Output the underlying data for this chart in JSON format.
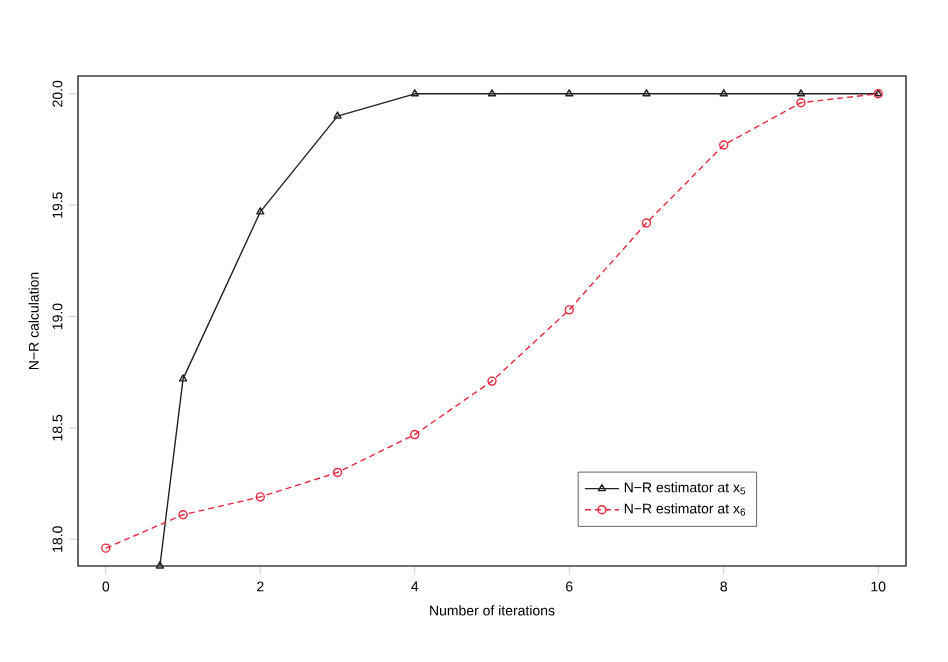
{
  "chart_data": {
    "type": "line",
    "xlabel": "Number of iterations",
    "ylabel": "N−R calculation",
    "xlim": [
      -0.36,
      10.36
    ],
    "ylim": [
      17.88,
      20.08
    ],
    "xticks": [
      0,
      2,
      4,
      6,
      8,
      10
    ],
    "yticks": [
      {
        "value": 18,
        "label": "18.0"
      },
      {
        "value": 18.5,
        "label": "18.5"
      },
      {
        "value": 19,
        "label": "19.0"
      },
      {
        "value": 19.5,
        "label": "19.5"
      },
      {
        "value": 20,
        "label": "20.0"
      }
    ],
    "grid": false,
    "legend": "bottom right",
    "series": [
      {
        "name": "N−R estimator at x$_{5}$",
        "color": "#222222",
        "marker": "triangle",
        "line_style": "solid",
        "x": [
          0.7,
          1,
          2,
          3,
          4,
          5,
          6,
          7,
          8,
          9,
          10
        ],
        "values": [
          17.88,
          18.72,
          19.47,
          19.9,
          20.0,
          20.0,
          20.0,
          20.0,
          20.0,
          20.0,
          20.0
        ]
      },
      {
        "name": "N−R estimator at x$_{6}$",
        "color": "#e8283c",
        "marker": "circle",
        "line_style": "dotted",
        "x": [
          0,
          1,
          2,
          3,
          4,
          5,
          6,
          7,
          8,
          9,
          10
        ],
        "values": [
          17.96,
          18.11,
          18.19,
          18.3,
          18.47,
          18.71,
          19.03,
          19.42,
          19.77,
          19.96,
          20.0
        ]
      }
    ]
  }
}
